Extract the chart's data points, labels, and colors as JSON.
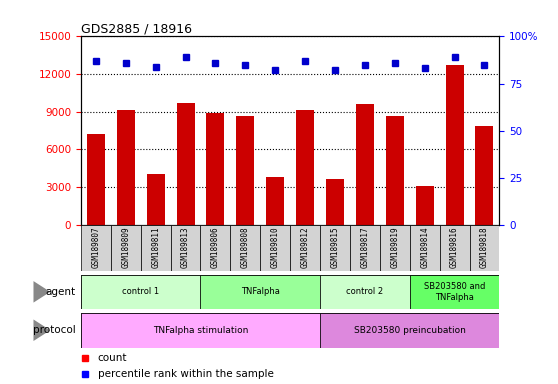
{
  "title": "GDS2885 / 18916",
  "samples": [
    "GSM189807",
    "GSM189809",
    "GSM189811",
    "GSM189813",
    "GSM189806",
    "GSM189808",
    "GSM189810",
    "GSM189812",
    "GSM189815",
    "GSM189817",
    "GSM189819",
    "GSM189814",
    "GSM189816",
    "GSM189818"
  ],
  "counts": [
    7200,
    9100,
    4000,
    9700,
    8900,
    8700,
    3800,
    9100,
    3600,
    9600,
    8700,
    3100,
    12700,
    7900
  ],
  "percentile_ranks": [
    87,
    86,
    84,
    89,
    86,
    85,
    82,
    87,
    82,
    85,
    86,
    83,
    89,
    85
  ],
  "agent_groups": [
    {
      "label": "control 1",
      "start": 0,
      "end": 3,
      "color": "#ccffcc"
    },
    {
      "label": "TNFalpha",
      "start": 4,
      "end": 7,
      "color": "#99ff99"
    },
    {
      "label": "control 2",
      "start": 8,
      "end": 10,
      "color": "#ccffcc"
    },
    {
      "label": "SB203580 and\nTNFalpha",
      "start": 11,
      "end": 13,
      "color": "#66ff66"
    }
  ],
  "protocol_groups": [
    {
      "label": "TNFalpha stimulation",
      "start": 0,
      "end": 7,
      "color": "#ffaaff"
    },
    {
      "label": "SB203580 preincubation",
      "start": 8,
      "end": 13,
      "color": "#dd88dd"
    }
  ],
  "ylim_left": [
    0,
    15000
  ],
  "yticks_left": [
    0,
    3000,
    6000,
    9000,
    12000,
    15000
  ],
  "ylim_right": [
    0,
    100
  ],
  "yticks_right": [
    0,
    25,
    50,
    75,
    100
  ],
  "bar_color": "#cc0000",
  "dot_color": "#0000cc",
  "bar_width": 0.6,
  "figsize": [
    5.58,
    3.84
  ],
  "dpi": 100
}
